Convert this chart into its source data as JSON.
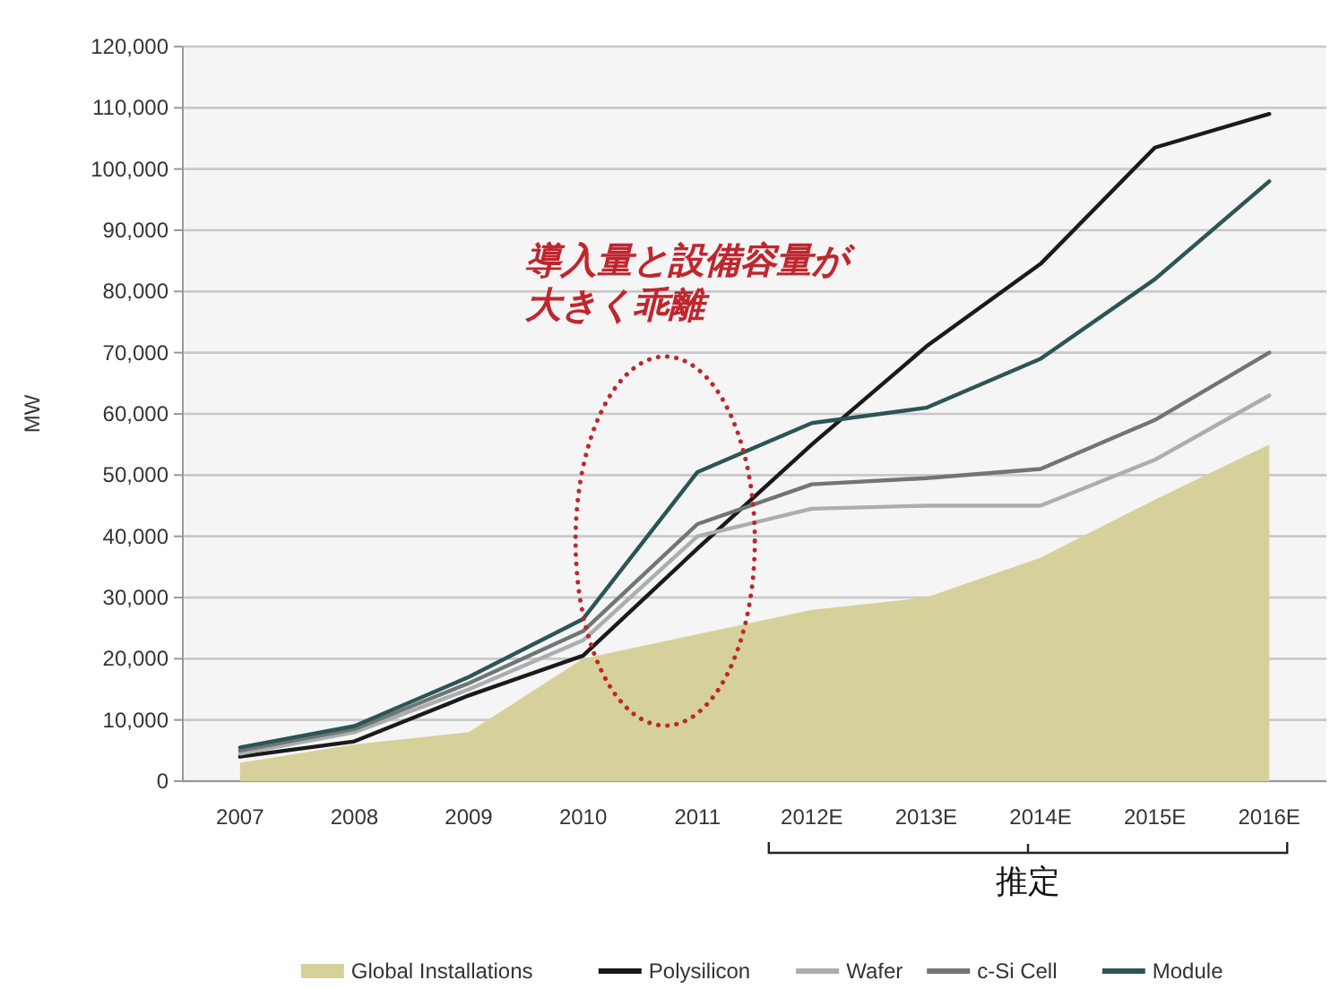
{
  "chart_data": {
    "type": "line",
    "categories": [
      "2007",
      "2008",
      "2009",
      "2010",
      "2011",
      "2012E",
      "2013E",
      "2014E",
      "2015E",
      "2016E"
    ],
    "ylabel": "MW",
    "ylim": [
      0,
      120000
    ],
    "yticks": [
      {
        "value": 0,
        "label": "0"
      },
      {
        "value": 10000,
        "label": "10,000"
      },
      {
        "value": 20000,
        "label": "20,000"
      },
      {
        "value": 30000,
        "label": "30,000"
      },
      {
        "value": 40000,
        "label": "40,000"
      },
      {
        "value": 50000,
        "label": "50,000"
      },
      {
        "value": 60000,
        "label": "60,000"
      },
      {
        "value": 70000,
        "label": "70,000"
      },
      {
        "value": 80000,
        "label": "80,000"
      },
      {
        "value": 90000,
        "label": "90,000"
      },
      {
        "value": 100000,
        "label": "100,000"
      },
      {
        "value": 110000,
        "label": "110,000"
      },
      {
        "value": 120000,
        "label": "120,000"
      }
    ],
    "grid": "y",
    "legend": "bottom",
    "series": [
      {
        "name": "Global Installations",
        "type": "area",
        "color": "#d6d19a",
        "values": [
          3000,
          6000,
          8000,
          20000,
          24000,
          28000,
          30000,
          36500,
          46000,
          55000
        ]
      },
      {
        "name": "Polysilicon",
        "type": "line",
        "color": "#1a1a1a",
        "values": [
          4000,
          6500,
          14000,
          20500,
          38000,
          55000,
          71000,
          84500,
          103500,
          109000
        ]
      },
      {
        "name": "Wafer",
        "type": "line",
        "color": "#a9aeae",
        "values": [
          4500,
          8000,
          15000,
          23000,
          40000,
          44500,
          45000,
          45000,
          52500,
          63000
        ]
      },
      {
        "name": "c-Si Cell",
        "type": "line",
        "color": "#6f7675",
        "values": [
          5000,
          8500,
          16000,
          24500,
          42000,
          48500,
          49500,
          51000,
          59000,
          70000
        ]
      },
      {
        "name": "Module",
        "type": "line",
        "color": "#2c5555",
        "values": [
          5500,
          9000,
          17000,
          26500,
          50500,
          58500,
          61000,
          69000,
          82000,
          98000
        ]
      }
    ],
    "annotations": [
      "導入量と設備容量が",
      "大きく乖離",
      "推定"
    ]
  }
}
